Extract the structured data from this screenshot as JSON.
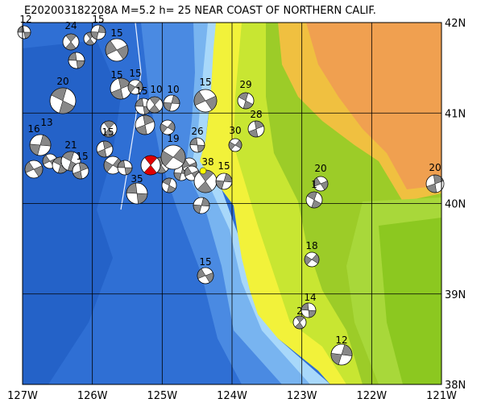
{
  "header": {
    "title": "E202003182208A M=5.2 h= 25 NEAR COAST OF NORTHERN CALIF."
  },
  "lon_labels": [
    "127W",
    "126W",
    "125W",
    "124W",
    "123W",
    "122W",
    "121W"
  ],
  "lat_labels": [
    "42N",
    "41N",
    "40N",
    "39N",
    "38N"
  ],
  "events": [
    {
      "depth": "12"
    },
    {
      "depth": "24"
    },
    {
      "depth": "15"
    },
    {
      "depth": "15"
    },
    {
      "depth": "20"
    },
    {
      "depth": "15"
    },
    {
      "depth": "15"
    },
    {
      "depth": "15"
    },
    {
      "depth": "10"
    },
    {
      "depth": "10"
    },
    {
      "depth": "15"
    },
    {
      "depth": "29"
    },
    {
      "depth": "28"
    },
    {
      "depth": "30"
    },
    {
      "depth": "26"
    },
    {
      "depth": "15"
    },
    {
      "depth": "13"
    },
    {
      "depth": "16"
    },
    {
      "depth": "21"
    },
    {
      "depth": "15"
    },
    {
      "depth": "19"
    },
    {
      "depth": "35"
    },
    {
      "depth": "38"
    },
    {
      "depth": "15"
    },
    {
      "depth": "20"
    },
    {
      "depth": "1"
    },
    {
      "depth": "20"
    },
    {
      "depth": "18"
    },
    {
      "depth": "14"
    },
    {
      "depth": "2"
    },
    {
      "depth": "12"
    },
    {
      "depth": "15"
    }
  ]
}
